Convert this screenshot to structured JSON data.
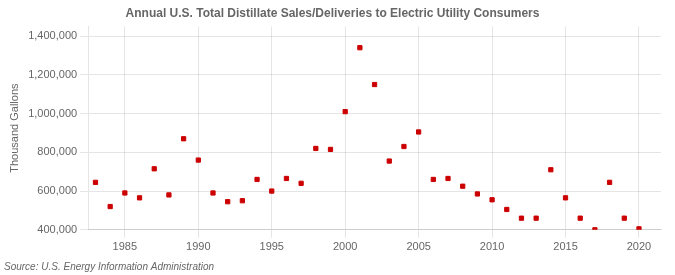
{
  "chart_data": {
    "type": "scatter",
    "title": "Annual U.S. Total Distillate Sales/Deliveries to Electric Utility Consumers",
    "ylabel": "Thousand Gallons",
    "source": "Source: U.S. Energy Information Administration",
    "x": [
      1983,
      1984,
      1985,
      1986,
      1987,
      1988,
      1989,
      1990,
      1991,
      1992,
      1993,
      1994,
      1995,
      1996,
      1997,
      1998,
      1999,
      2000,
      2001,
      2002,
      2003,
      2004,
      2005,
      2006,
      2007,
      2008,
      2009,
      2010,
      2011,
      2012,
      2013,
      2014,
      2015,
      2016,
      2017,
      2018,
      2019,
      2020
    ],
    "values": [
      645000,
      520000,
      590000,
      565000,
      715000,
      580000,
      870000,
      760000,
      590000,
      545000,
      550000,
      660000,
      600000,
      665000,
      640000,
      820000,
      815000,
      1010000,
      1340000,
      1150000,
      755000,
      830000,
      905000,
      660000,
      665000,
      625000,
      585000,
      555000,
      505000,
      460000,
      460000,
      710000,
      565000,
      460000,
      400000,
      645000,
      460000,
      405000
    ],
    "color": "#cc0000",
    "marker": "square",
    "xlim": [
      1982.5,
      2021.5
    ],
    "ylim": [
      400000,
      1450000
    ],
    "xticks": [
      1985,
      1990,
      1995,
      2000,
      2005,
      2010,
      2015,
      2020
    ],
    "yticks": [
      {
        "value": 400000,
        "label": "400,000"
      },
      {
        "value": 600000,
        "label": "600,000"
      },
      {
        "value": 800000,
        "label": "800,000"
      },
      {
        "value": 1000000,
        "label": "1,000,000"
      },
      {
        "value": 1200000,
        "label": "1,200,000"
      },
      {
        "value": 1400000,
        "label": "1,400,000"
      }
    ],
    "grid": true
  }
}
